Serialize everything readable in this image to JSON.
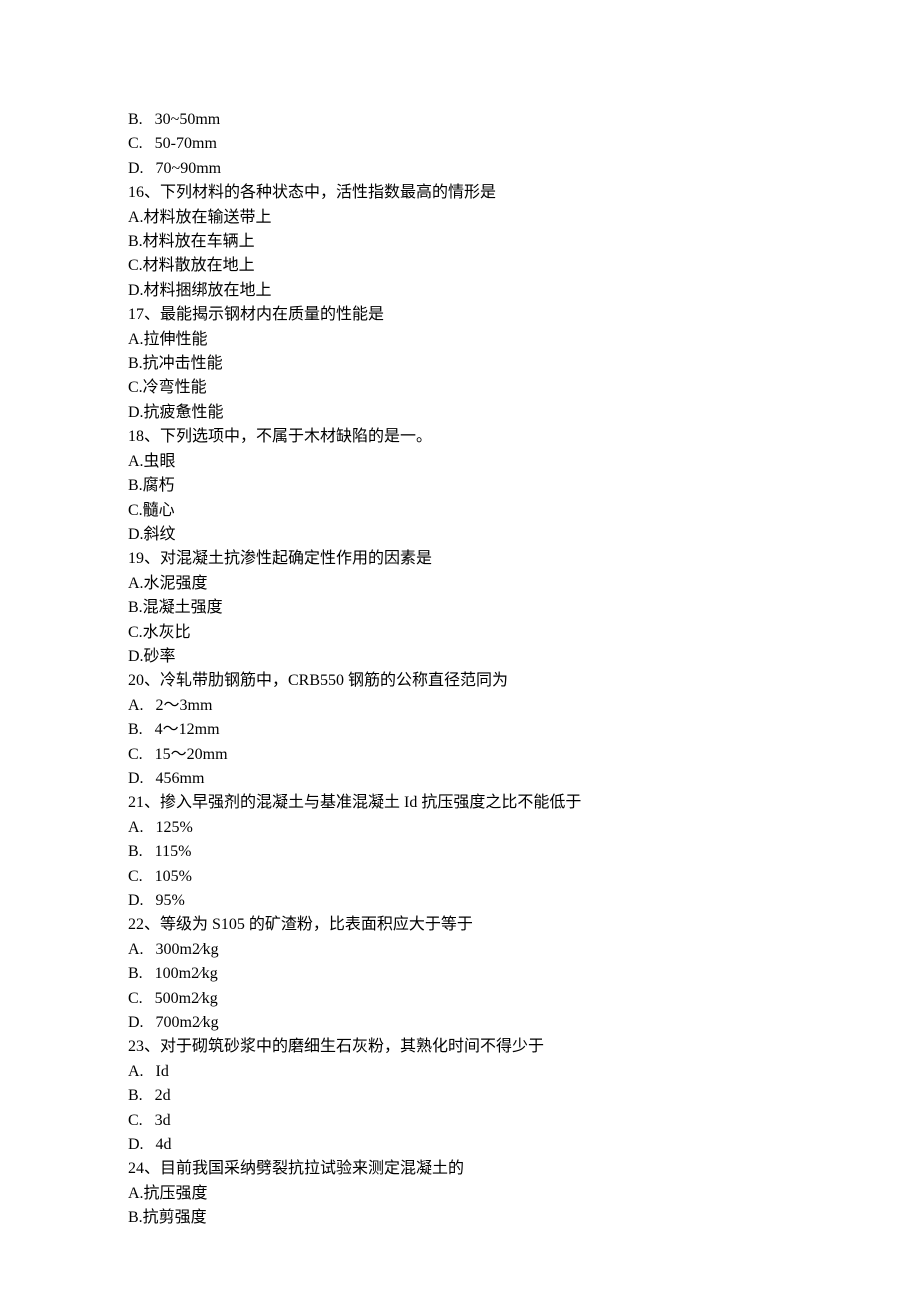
{
  "text_color": "#000000",
  "background_color": "#ffffff",
  "font_size": 16,
  "line_height": 24.4,
  "orphan_options": [
    "B.   30~50mm",
    "C.   50-70mm",
    "D.   70~90mm"
  ],
  "questions": [
    {
      "stem": "16、下列材料的各种状态中，活性指数最高的情形是",
      "options": [
        "A.材料放在输送带上",
        "B.材料放在车辆上",
        "C.材料散放在地上",
        "D.材料捆绑放在地上"
      ]
    },
    {
      "stem": "17、最能揭示钢材内在质量的性能是",
      "options": [
        "A.拉伸性能",
        "B.抗冲击性能",
        "C.冷弯性能",
        "D.抗疲惫性能"
      ]
    },
    {
      "stem": "18、下列选项中，不属于木材缺陷的是一。",
      "options": [
        "A.虫眼",
        "B.腐朽",
        "C.髓心",
        "D.斜纹"
      ]
    },
    {
      "stem": "19、对混凝土抗渗性起确定性作用的因素是",
      "options": [
        "A.水泥强度",
        "B.混凝土强度",
        "C.水灰比",
        "D.砂率"
      ]
    },
    {
      "stem": "20、冷轧带肋钢筋中，CRB550 钢筋的公称直径范同为",
      "options": [
        "A.   2～3mm",
        "B.   4～12mm",
        "C.   15～20mm",
        "D.   456mm"
      ]
    },
    {
      "stem": "21、掺入早强剂的混凝土与基准混凝土 Id 抗压强度之比不能低于",
      "options": [
        "A.   125%",
        "B.   115%",
        "C.   105%",
        "D.   95%"
      ]
    },
    {
      "stem": "22、等级为 S105 的矿渣粉，比表面积应大于等于",
      "options": [
        "A.   300m2∕kg",
        "B.   100m2∕kg",
        "C.   500m2∕kg",
        "D.   700m2∕kg"
      ]
    },
    {
      "stem": "23、对于砌筑砂浆中的磨细生石灰粉，其熟化时间不得少于",
      "options": [
        "A.   Id",
        "B.   2d",
        "C.   3d",
        "D.   4d"
      ]
    },
    {
      "stem": "24、目前我国采纳劈裂抗拉试验来测定混凝土的",
      "options": [
        "A.抗压强度",
        "B.抗剪强度"
      ]
    }
  ]
}
